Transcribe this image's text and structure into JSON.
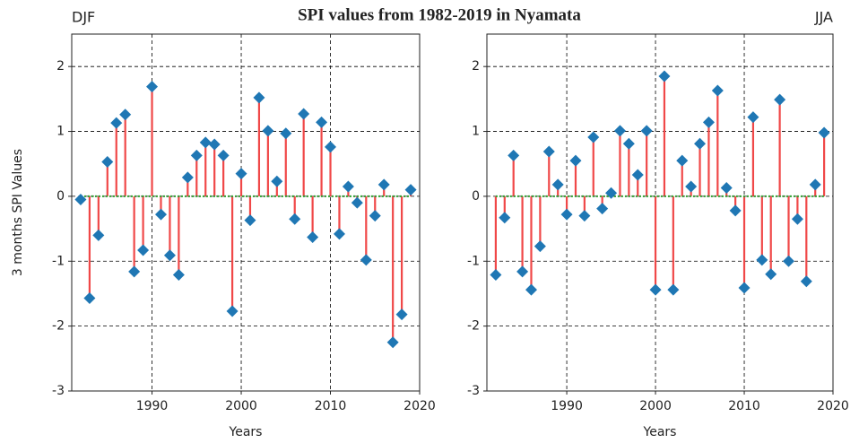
{
  "title": "SPI values from 1982-2019 in Nyamata",
  "chart_data": [
    {
      "type": "stem",
      "title": "DJF",
      "title_align": "left",
      "xlabel": "Years",
      "ylabel": "3 months SPI Values",
      "x": [
        1982,
        1983,
        1984,
        1985,
        1986,
        1987,
        1988,
        1989,
        1990,
        1991,
        1992,
        1993,
        1994,
        1995,
        1996,
        1997,
        1998,
        1999,
        2000,
        2001,
        2002,
        2003,
        2004,
        2005,
        2006,
        2007,
        2008,
        2009,
        2010,
        2011,
        2012,
        2013,
        2014,
        2015,
        2016,
        2017,
        2018,
        2019
      ],
      "values": [
        -0.05,
        -1.57,
        -0.6,
        0.53,
        1.13,
        1.26,
        -1.16,
        -0.83,
        1.69,
        -0.28,
        -0.91,
        -1.21,
        0.29,
        0.63,
        0.83,
        0.8,
        0.63,
        -1.77,
        0.35,
        -0.37,
        1.52,
        1.01,
        0.23,
        0.97,
        -0.35,
        1.27,
        -0.63,
        1.14,
        0.76,
        -0.58,
        0.15,
        -0.1,
        -0.98,
        -0.3,
        0.18,
        -2.25,
        -1.82,
        0.1
      ],
      "stem_color": "#f04848",
      "marker_color": "#1f77b4",
      "baseline_color": "#2ca02c",
      "xlim": [
        1981,
        2020
      ],
      "ylim": [
        -3,
        2.5
      ],
      "xticks": [
        1990,
        2000,
        2010,
        2020
      ],
      "yticks": [
        -3,
        -2,
        -1,
        0,
        1,
        2
      ],
      "grid": true
    },
    {
      "type": "stem",
      "title": "JJA",
      "title_align": "right",
      "xlabel": "Years",
      "x": [
        1982,
        1983,
        1984,
        1985,
        1986,
        1987,
        1988,
        1989,
        1990,
        1991,
        1992,
        1993,
        1994,
        1995,
        1996,
        1997,
        1998,
        1999,
        2000,
        2001,
        2002,
        2003,
        2004,
        2005,
        2006,
        2007,
        2008,
        2009,
        2010,
        2011,
        2012,
        2013,
        2014,
        2015,
        2016,
        2017,
        2018,
        2019
      ],
      "values": [
        -1.21,
        -0.33,
        0.63,
        -1.16,
        -1.44,
        -0.77,
        0.69,
        0.18,
        -0.28,
        0.55,
        -0.3,
        0.91,
        -0.19,
        0.05,
        1.01,
        0.81,
        0.33,
        1.01,
        -1.44,
        1.85,
        -1.44,
        0.55,
        0.15,
        0.81,
        1.14,
        1.63,
        0.13,
        -0.22,
        -1.41,
        1.22,
        -0.98,
        -1.2,
        1.49,
        -1.0,
        -0.35,
        -1.31,
        0.18,
        0.98
      ],
      "stem_color": "#f04848",
      "marker_color": "#1f77b4",
      "baseline_color": "#2ca02c",
      "xlim": [
        1981,
        2020
      ],
      "ylim": [
        -3,
        2.5
      ],
      "xticks": [
        1990,
        2000,
        2010,
        2020
      ],
      "yticks": [
        -3,
        -2,
        -1,
        0,
        1,
        2
      ],
      "grid": true
    }
  ]
}
